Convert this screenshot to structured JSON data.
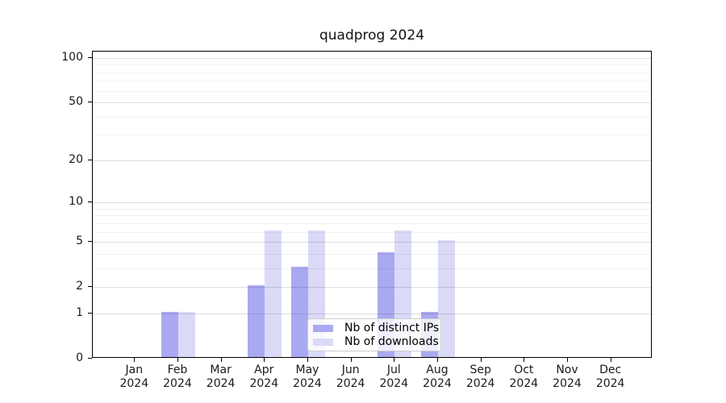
{
  "chart_data": {
    "type": "bar",
    "title": "quadprog 2024",
    "categories": [
      "Jan",
      "Feb",
      "Mar",
      "Apr",
      "May",
      "Jun",
      "Jul",
      "Aug",
      "Sep",
      "Oct",
      "Nov",
      "Dec"
    ],
    "year_label": "2024",
    "series": [
      {
        "name": "Nb of distinct IPs",
        "color": "#a9a9f1",
        "values": [
          0,
          1,
          0,
          2,
          3,
          0,
          4,
          1,
          0,
          0,
          0,
          0
        ]
      },
      {
        "name": "Nb of downloads",
        "color": "#dadaf7",
        "values": [
          0,
          1,
          0,
          6,
          6,
          0,
          6,
          5,
          0,
          0,
          0,
          0
        ]
      }
    ],
    "xlabel": "",
    "ylabel": "",
    "yscale": "log1p",
    "ylim": [
      0,
      110.5
    ],
    "yticks_major": [
      0,
      1,
      2,
      5,
      10,
      20,
      50,
      100
    ],
    "yticks_minor": [
      3,
      4,
      6,
      7,
      8,
      9,
      30,
      40,
      60,
      70,
      80,
      90
    ],
    "grid": "on",
    "legend_position": "inside lower center-right",
    "colors": {
      "grid_major": "rgba(0,0,0,0.13)",
      "grid_minor": "rgba(0,0,0,0.05)",
      "axis": "#000000",
      "legend_border": "#cccccc"
    }
  }
}
